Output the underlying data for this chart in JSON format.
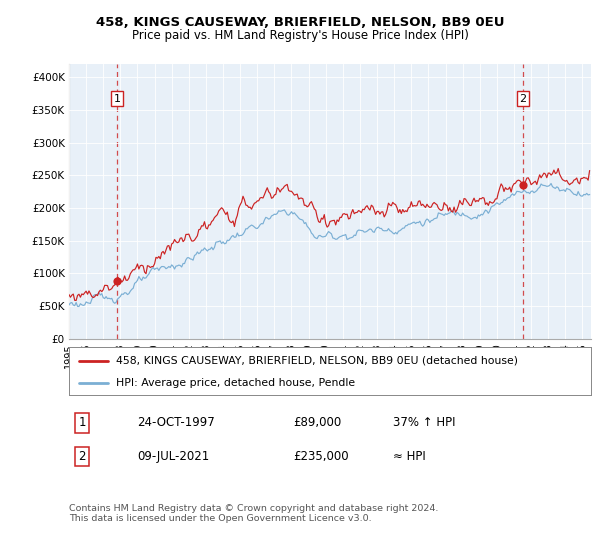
{
  "title1": "458, KINGS CAUSEWAY, BRIERFIELD, NELSON, BB9 0EU",
  "title2": "Price paid vs. HM Land Registry's House Price Index (HPI)",
  "xlim_start": 1995.0,
  "xlim_end": 2025.5,
  "ylim_min": 0,
  "ylim_max": 420000,
  "yticks": [
    0,
    50000,
    100000,
    150000,
    200000,
    250000,
    300000,
    350000,
    400000
  ],
  "ytick_labels": [
    "£0",
    "£50K",
    "£100K",
    "£150K",
    "£200K",
    "£250K",
    "£300K",
    "£350K",
    "£400K"
  ],
  "transaction1_year": 1997.81,
  "transaction1_price": 89000,
  "transaction2_year": 2021.52,
  "transaction2_price": 235000,
  "legend_line1": "458, KINGS CAUSEWAY, BRIERFIELD, NELSON, BB9 0EU (detached house)",
  "legend_line2": "HPI: Average price, detached house, Pendle",
  "row1_label": "1",
  "row1_date": "24-OCT-1997",
  "row1_price": "£89,000",
  "row1_hpi": "37% ↑ HPI",
  "row2_label": "2",
  "row2_date": "09-JUL-2021",
  "row2_price": "£235,000",
  "row2_hpi": "≈ HPI",
  "footnote": "Contains HM Land Registry data © Crown copyright and database right 2024.\nThis data is licensed under the Open Government Licence v3.0.",
  "line_red_color": "#cc2222",
  "line_blue_color": "#7bafd4",
  "background_plot": "#e8f0f8",
  "grid_color": "#ffffff"
}
